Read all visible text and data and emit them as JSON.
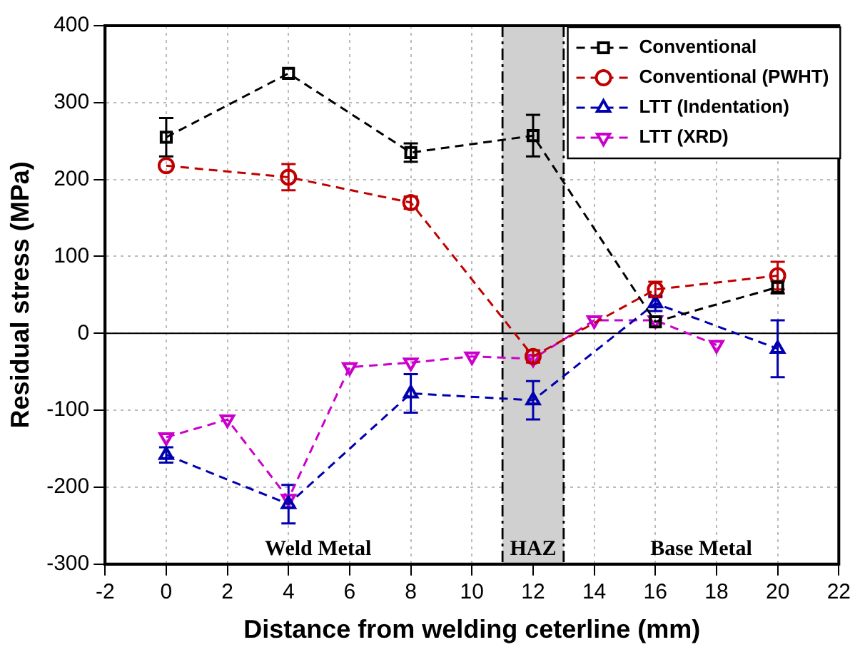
{
  "chart_data": {
    "type": "line",
    "xlabel": "Distance from welding ceterline (mm)",
    "ylabel": "Residual stress (MPa)",
    "xlim": [
      -2,
      22
    ],
    "xticks": [
      -2,
      0,
      2,
      4,
      6,
      8,
      10,
      12,
      14,
      16,
      18,
      20,
      22
    ],
    "ylim": [
      -300,
      400
    ],
    "yticks": [
      -300,
      -200,
      -100,
      0,
      100,
      200,
      300,
      400
    ],
    "grid": true,
    "legend": "top right",
    "line_style": "dashed",
    "series": [
      {
        "name": "Conventional",
        "color": "#000000",
        "marker": "square",
        "x": [
          0,
          4,
          8,
          12,
          16,
          20
        ],
        "values": [
          255,
          338,
          235,
          257,
          15,
          60
        ],
        "errors": [
          25,
          null,
          12,
          27,
          null,
          8
        ]
      },
      {
        "name": "Conventional (PWHT)",
        "color": "#c00000",
        "marker": "circle",
        "x": [
          0,
          4,
          8,
          12,
          16,
          20
        ],
        "values": [
          218,
          203,
          170,
          -30,
          57,
          75
        ],
        "errors": [
          null,
          17,
          8,
          8,
          10,
          18
        ]
      },
      {
        "name": "LTT (Indentation)",
        "color": "#0000b0",
        "marker": "triangle",
        "x": [
          0,
          4,
          8,
          12,
          16,
          20
        ],
        "values": [
          -158,
          -222,
          -78,
          -87,
          39,
          -20
        ],
        "errors": [
          10,
          25,
          25,
          25,
          10,
          37
        ]
      },
      {
        "name": "LTT (XRD)",
        "color": "#cc00cc",
        "marker": "triangle-down",
        "x": [
          0,
          2,
          4,
          6,
          8,
          10,
          12,
          14,
          16,
          18
        ],
        "values": [
          -135,
          -112,
          -215,
          -44,
          -38,
          -30,
          -33,
          17,
          17,
          -15
        ]
      }
    ],
    "ref_lines": [
      {
        "axis": "y",
        "value": 0,
        "color": "#000000",
        "line_style": "solid"
      },
      {
        "axis": "x",
        "value": 11,
        "color": "#000000",
        "line_style": "dashed"
      },
      {
        "axis": "x",
        "value": 13,
        "color": "#000000",
        "line_style": "dashed"
      }
    ],
    "bands": [
      {
        "axis": "x",
        "from": 11,
        "to": 13,
        "label": "HAZ",
        "color": "#d0d0d0"
      }
    ],
    "annotations": [
      "Weld Metal",
      "Base Metal"
    ]
  }
}
